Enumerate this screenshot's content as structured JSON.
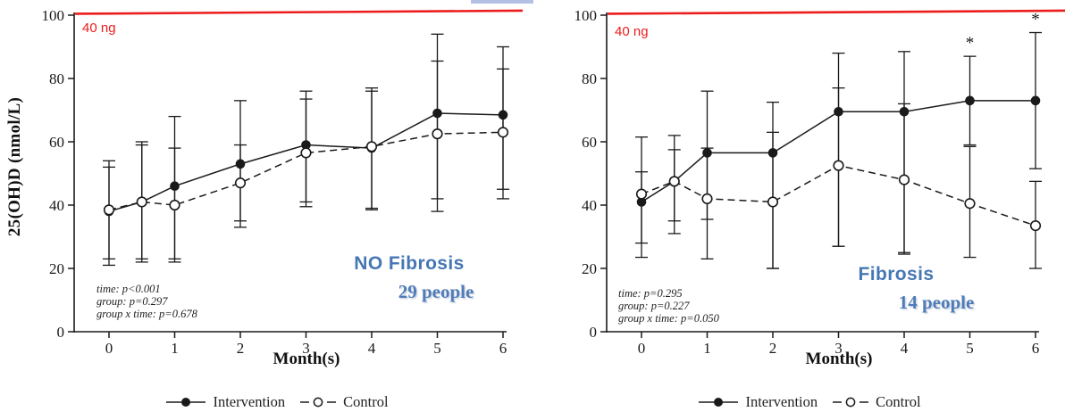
{
  "colors": {
    "accent_blue": "#4677b4",
    "reference_red": "#ec1c1c",
    "axis_ink": "#1a1a1a"
  },
  "y_axis_title": "25(OH)D (nmol/L)",
  "legend": {
    "items": [
      {
        "label": "Intervention",
        "marker": "filled-circle-solid-line"
      },
      {
        "label": "Control",
        "marker": "open-circle-dashed-line"
      }
    ]
  },
  "chart_data": [
    {
      "type": "line",
      "title": "NO Fibrosis",
      "subtitle": "29 people",
      "xlabel": "Month(s)",
      "ylabel": "25(OH)D (nmol/L)",
      "x": [
        0,
        0.5,
        1,
        2,
        3,
        4,
        5,
        6
      ],
      "x_tick_labels": [
        "0",
        "1",
        "2",
        "3",
        "4",
        "5",
        "6"
      ],
      "ylim": [
        0,
        100
      ],
      "y_ticks": [
        0,
        20,
        40,
        60,
        80,
        100
      ],
      "grid": false,
      "legend_position": "bottom",
      "reference_line": {
        "label": "40 ng",
        "value": 101
      },
      "stats_lines": [
        "time: p<0.001",
        "group: p=0.297",
        "group x time: p=0.678"
      ],
      "series": [
        {
          "name": "Intervention",
          "marker": "filled",
          "line": "solid",
          "values": [
            38,
            41,
            46,
            53,
            59,
            58,
            69,
            68.5
          ],
          "err_lo": [
            23,
            23,
            23,
            35,
            41,
            39,
            42,
            42
          ],
          "err_hi": [
            52,
            59,
            68,
            73,
            76,
            77,
            94,
            90
          ],
          "significance": []
        },
        {
          "name": "Control",
          "marker": "open",
          "line": "dashed",
          "values": [
            38.5,
            41,
            40,
            47,
            56.5,
            58.5,
            62.5,
            63
          ],
          "err_lo": [
            21,
            22,
            22,
            33,
            39.5,
            38.5,
            38,
            45
          ],
          "err_hi": [
            54,
            60,
            58,
            59,
            73.5,
            76,
            85.5,
            83
          ],
          "significance": []
        }
      ]
    },
    {
      "type": "line",
      "title": "Fibrosis",
      "subtitle": "14 people",
      "xlabel": "Month(s)",
      "ylabel": "25(OH)D (nmol/L)",
      "x": [
        0,
        0.5,
        1,
        2,
        3,
        4,
        5,
        6
      ],
      "x_tick_labels": [
        "0",
        "1",
        "2",
        "3",
        "4",
        "5",
        "6"
      ],
      "ylim": [
        0,
        100
      ],
      "y_ticks": [
        0,
        20,
        40,
        60,
        80,
        100
      ],
      "grid": false,
      "legend_position": "bottom",
      "reference_line": {
        "label": "40 ng",
        "value": 101
      },
      "stats_lines": [
        "time: p=0.295",
        "group: p=0.227",
        "group x time: p=0.050"
      ],
      "series": [
        {
          "name": "Intervention",
          "marker": "filled",
          "line": "solid",
          "values": [
            41,
            47.5,
            56.5,
            56.5,
            69.5,
            69.5,
            73,
            73
          ],
          "err_lo": [
            23.5,
            31,
            23,
            20,
            27,
            24.5,
            59,
            51.5
          ],
          "err_hi": [
            50.5,
            57.5,
            76,
            72.5,
            88,
            88.5,
            87,
            94.5
          ],
          "significance": [
            {
              "x": 5,
              "label": "*"
            },
            {
              "x": 6,
              "label": "*"
            }
          ]
        },
        {
          "name": "Control",
          "marker": "open",
          "line": "dashed",
          "values": [
            43.5,
            47.5,
            42,
            41,
            52.5,
            48,
            40.5,
            33.5
          ],
          "err_lo": [
            28,
            35,
            35.5,
            20,
            27,
            25,
            23.5,
            20
          ],
          "err_hi": [
            61.5,
            62,
            58,
            63,
            77,
            72,
            58.5,
            47.5
          ],
          "significance": []
        }
      ]
    }
  ]
}
